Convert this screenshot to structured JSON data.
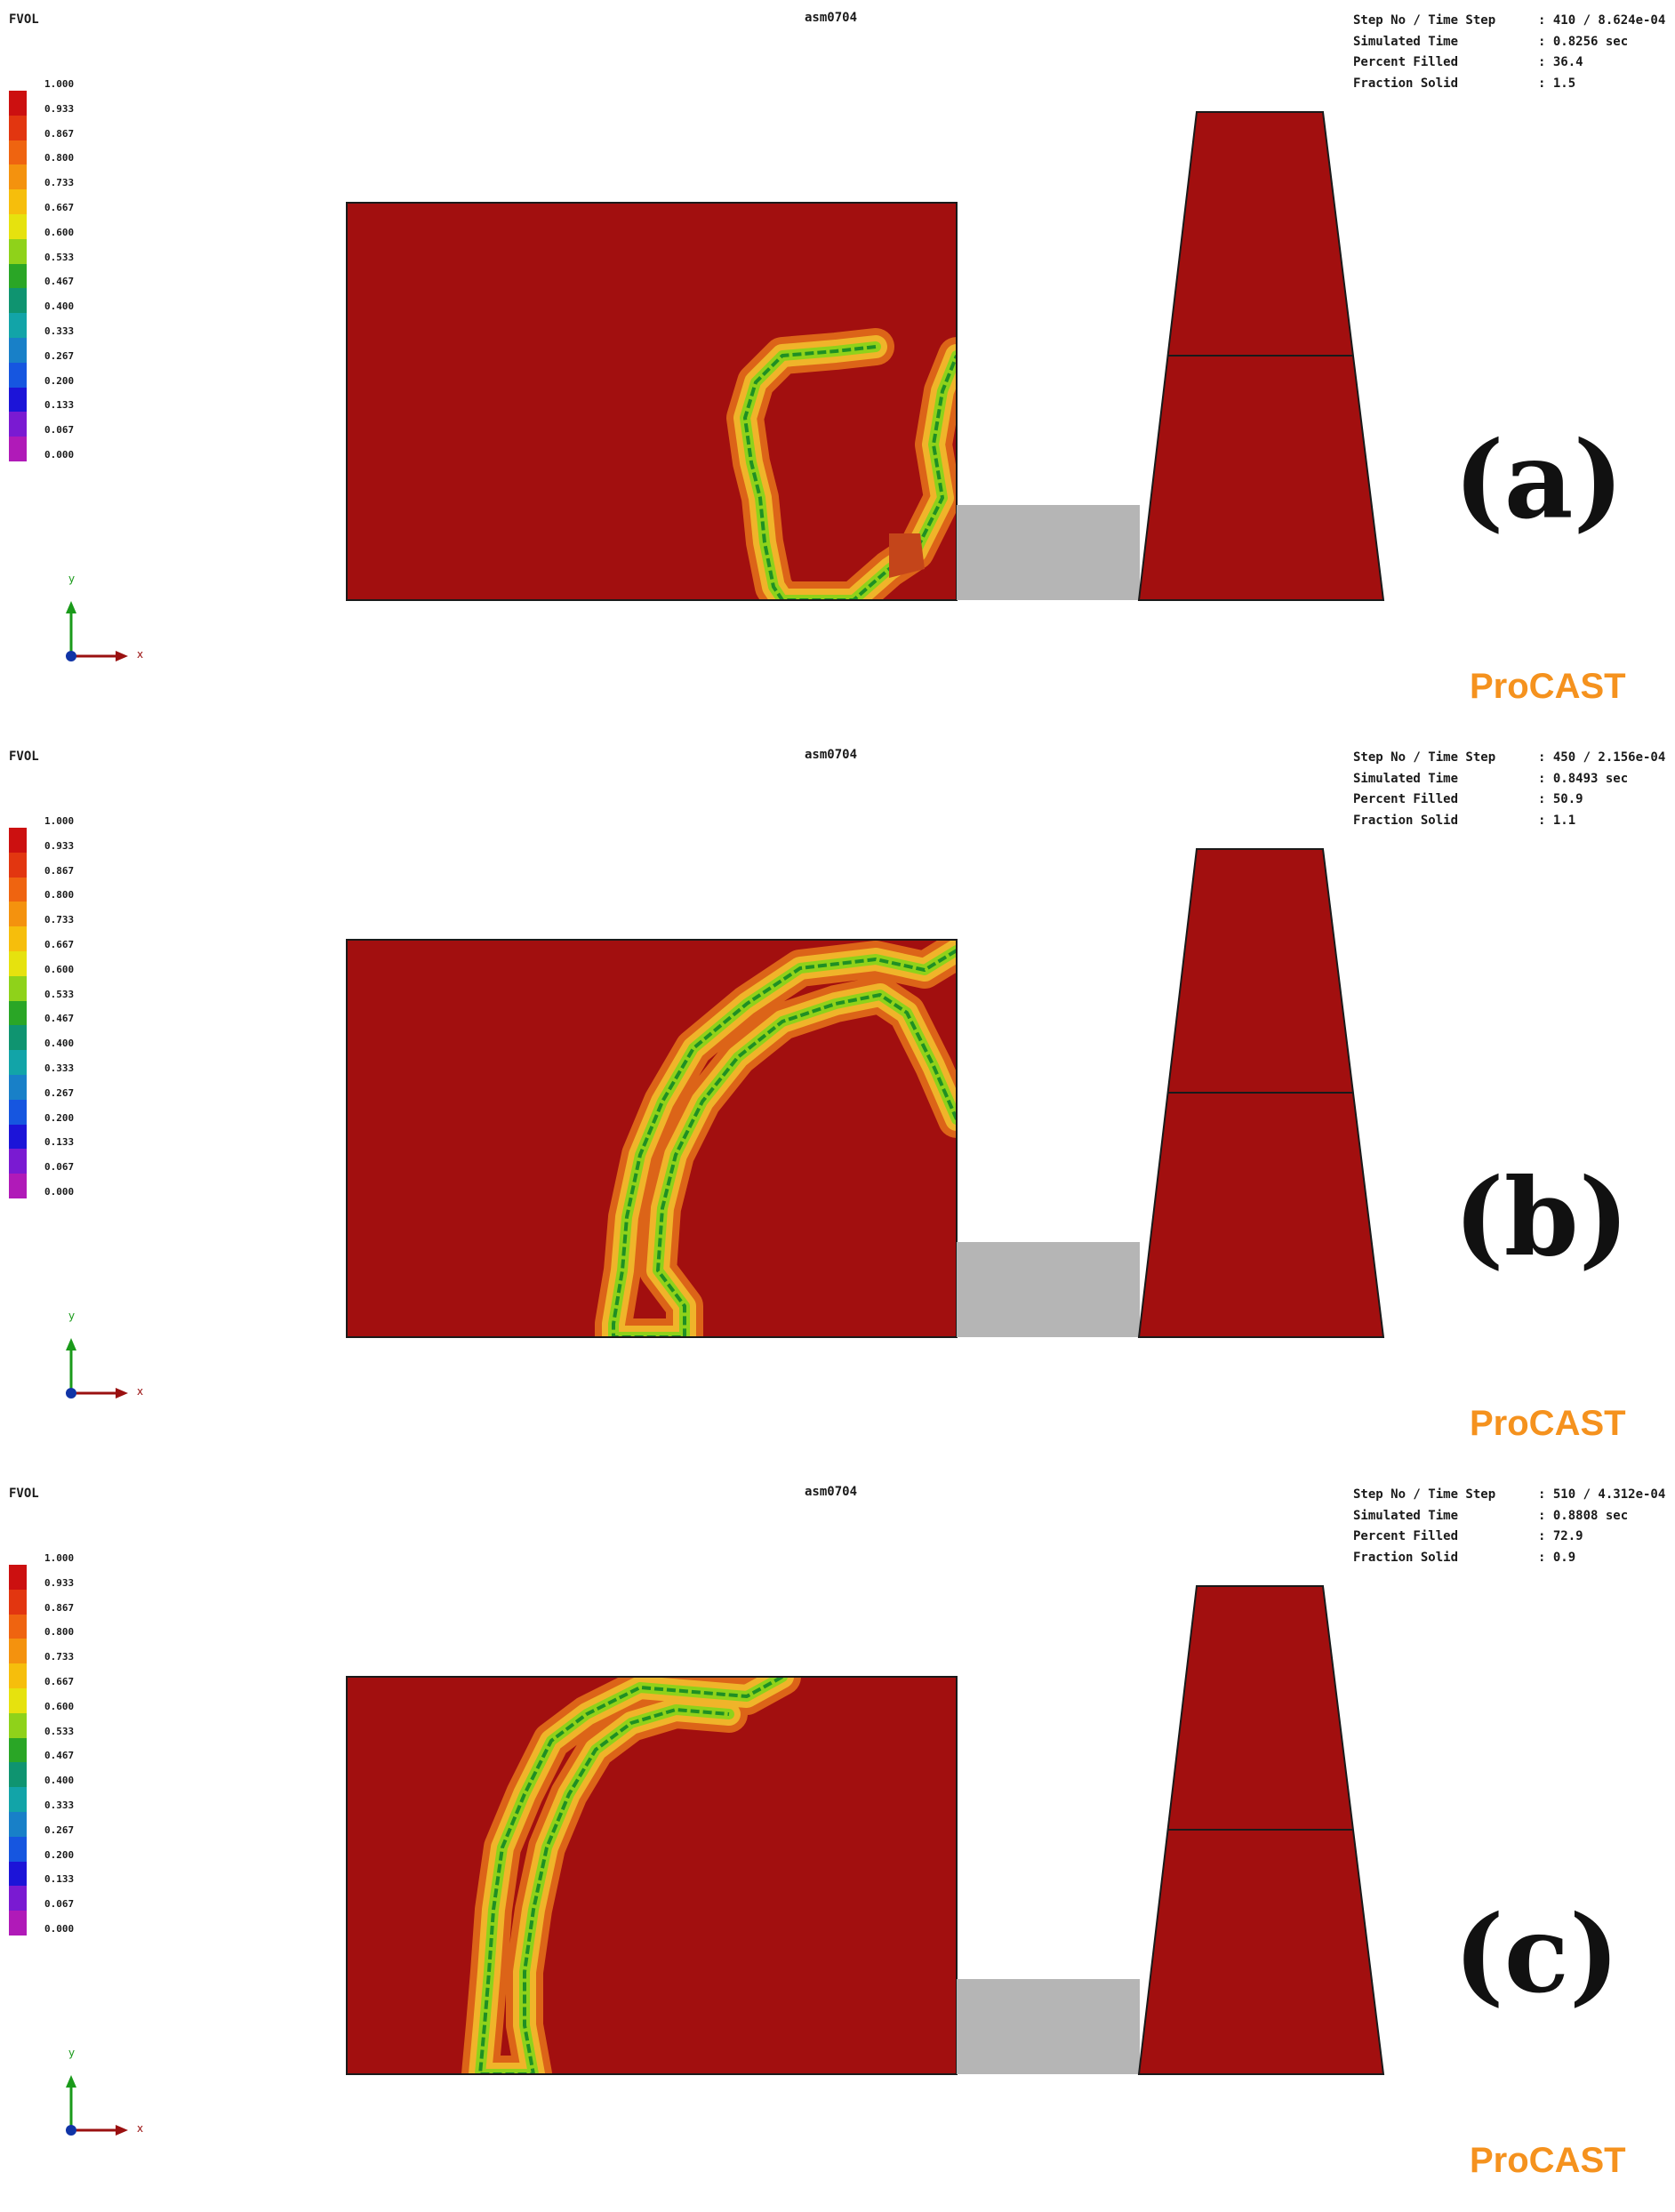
{
  "colors": {
    "melt": "#a20f0f",
    "runner": "#b5b5b5",
    "outline": "#1a1a1a",
    "procast": "#f5921e",
    "x_axis": "#9a1010",
    "y_axis": "#1a9a1a",
    "origin": "#1034a6"
  },
  "legend_colors": [
    "#cc1010",
    "#e23610",
    "#ef6410",
    "#f4920e",
    "#f6be0c",
    "#e6e20e",
    "#8fd21a",
    "#2aa626",
    "#0f9470",
    "#12a4a8",
    "#1880c8",
    "#1656e0",
    "#1c14d8",
    "#7a1ad2",
    "#b01ab8"
  ],
  "icons": [
    "axis-triad-icon"
  ],
  "panels": [
    {
      "field": "FVOL",
      "model": "asm0704",
      "legend_ticks": [
        "1.000",
        "0.933",
        "0.867",
        "0.800",
        "0.733",
        "0.667",
        "0.600",
        "0.533",
        "0.467",
        "0.400",
        "0.333",
        "0.267",
        "0.200",
        "0.133",
        "0.067",
        "0.000"
      ],
      "info": [
        {
          "key": "Step No / Time Step",
          "value": ": 410 / 8.624e-04"
        },
        {
          "key": "Simulated Time",
          "value": ": 0.8256 sec"
        },
        {
          "key": "Percent Filled",
          "value": ": 36.4"
        },
        {
          "key": "Fraction Solid",
          "value": ": 1.5"
        }
      ],
      "letter": "(a)",
      "brand": "ProCAST",
      "axis_x": "x",
      "axis_y": "y"
    },
    {
      "field": "FVOL",
      "model": "asm0704",
      "legend_ticks": [
        "1.000",
        "0.933",
        "0.867",
        "0.800",
        "0.733",
        "0.667",
        "0.600",
        "0.533",
        "0.467",
        "0.400",
        "0.333",
        "0.267",
        "0.200",
        "0.133",
        "0.067",
        "0.000"
      ],
      "info": [
        {
          "key": "Step No / Time Step",
          "value": ": 450 / 2.156e-04"
        },
        {
          "key": "Simulated Time",
          "value": ": 0.8493 sec"
        },
        {
          "key": "Percent Filled",
          "value": ": 50.9"
        },
        {
          "key": "Fraction Solid",
          "value": ": 1.1"
        }
      ],
      "letter": "(b)",
      "brand": "ProCAST",
      "axis_x": "x",
      "axis_y": "y"
    },
    {
      "field": "FVOL",
      "model": "asm0704",
      "legend_ticks": [
        "1.000",
        "0.933",
        "0.867",
        "0.800",
        "0.733",
        "0.667",
        "0.600",
        "0.533",
        "0.467",
        "0.400",
        "0.333",
        "0.267",
        "0.200",
        "0.133",
        "0.067",
        "0.000"
      ],
      "info": [
        {
          "key": "Step No / Time Step",
          "value": ": 510 / 4.312e-04"
        },
        {
          "key": "Simulated Time",
          "value": ": 0.8808 sec"
        },
        {
          "key": "Percent Filled",
          "value": ": 72.9"
        },
        {
          "key": "Fraction Solid",
          "value": ": 0.9"
        }
      ],
      "letter": "(c)",
      "brand": "ProCAST",
      "axis_x": "x",
      "axis_y": "y"
    }
  ]
}
